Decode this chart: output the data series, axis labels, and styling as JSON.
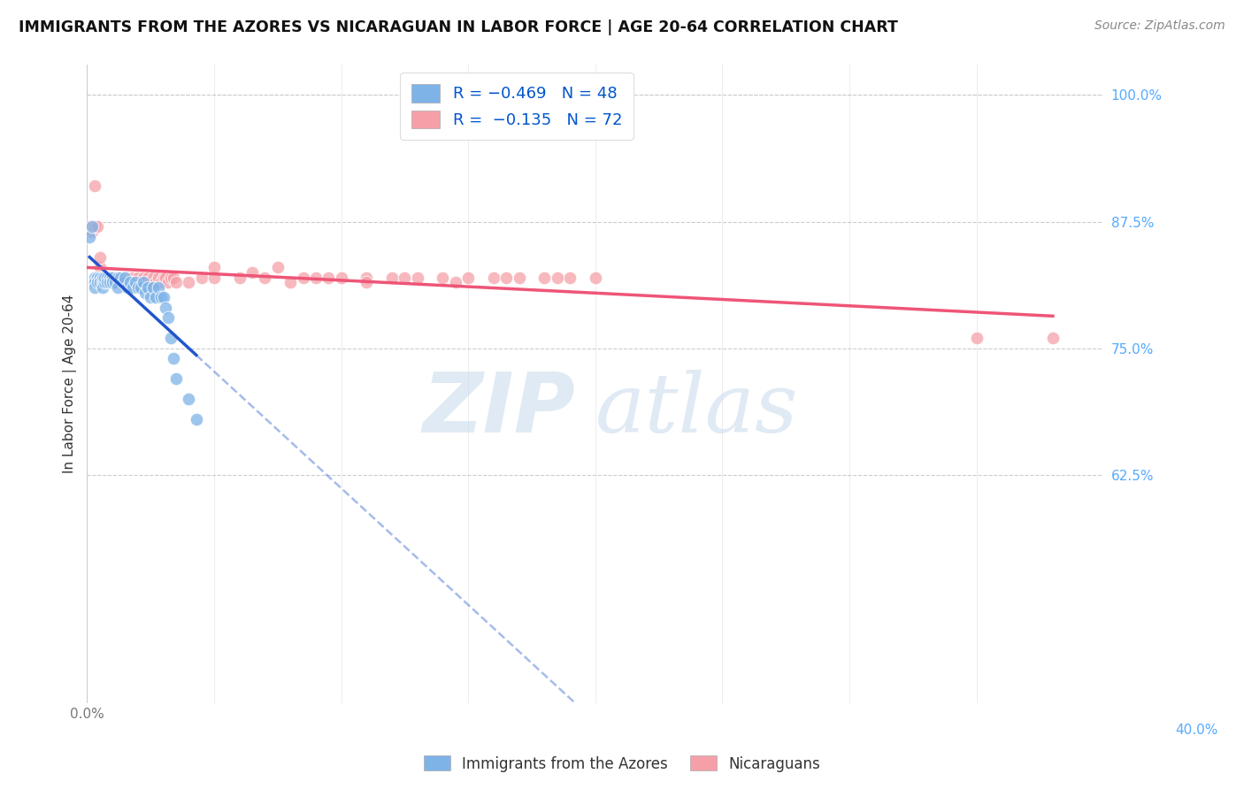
{
  "title": "IMMIGRANTS FROM THE AZORES VS NICARAGUAN IN LABOR FORCE | AGE 20-64 CORRELATION CHART",
  "source": "Source: ZipAtlas.com",
  "ylabel": "In Labor Force | Age 20-64",
  "xlim": [
    0.0,
    0.4
  ],
  "ylim": [
    0.4,
    1.03
  ],
  "xticks": [
    0.0,
    0.05,
    0.1,
    0.15,
    0.2,
    0.25,
    0.3,
    0.35,
    0.4
  ],
  "xticklabels": [
    "0.0%",
    "",
    "",
    "",
    "",
    "",
    "",
    "",
    "40.0%"
  ],
  "yticks_right": [
    1.0,
    0.875,
    0.75,
    0.625
  ],
  "ytick_labels_right": [
    "100.0%",
    "87.5%",
    "75.0%",
    "62.5%"
  ],
  "azores_R": -0.469,
  "azores_N": 48,
  "nicaraguan_R": -0.135,
  "nicaraguan_N": 72,
  "azores_color": "#7EB3E8",
  "nicaraguan_color": "#F5A0A8",
  "azores_line_color": "#2255CC",
  "nicaraguan_line_color": "#EE5577",
  "azores_x": [
    0.001,
    0.002,
    0.003,
    0.003,
    0.003,
    0.004,
    0.004,
    0.005,
    0.005,
    0.006,
    0.006,
    0.006,
    0.007,
    0.007,
    0.008,
    0.008,
    0.009,
    0.009,
    0.01,
    0.01,
    0.011,
    0.012,
    0.012,
    0.013,
    0.014,
    0.015,
    0.016,
    0.017,
    0.018,
    0.019,
    0.02,
    0.021,
    0.022,
    0.023,
    0.024,
    0.025,
    0.026,
    0.027,
    0.028,
    0.029,
    0.03,
    0.031,
    0.032,
    0.033,
    0.034,
    0.035,
    0.04,
    0.043
  ],
  "azores_y": [
    0.86,
    0.87,
    0.82,
    0.815,
    0.81,
    0.82,
    0.815,
    0.82,
    0.815,
    0.815,
    0.81,
    0.82,
    0.815,
    0.82,
    0.82,
    0.815,
    0.82,
    0.815,
    0.82,
    0.815,
    0.815,
    0.82,
    0.81,
    0.82,
    0.815,
    0.82,
    0.81,
    0.815,
    0.81,
    0.815,
    0.81,
    0.81,
    0.815,
    0.805,
    0.81,
    0.8,
    0.81,
    0.8,
    0.81,
    0.8,
    0.8,
    0.79,
    0.78,
    0.76,
    0.74,
    0.72,
    0.7,
    0.68
  ],
  "nicaraguan_x": [
    0.001,
    0.002,
    0.003,
    0.003,
    0.004,
    0.005,
    0.005,
    0.006,
    0.006,
    0.007,
    0.007,
    0.008,
    0.008,
    0.009,
    0.01,
    0.01,
    0.011,
    0.012,
    0.013,
    0.013,
    0.014,
    0.015,
    0.016,
    0.017,
    0.018,
    0.019,
    0.02,
    0.021,
    0.022,
    0.023,
    0.024,
    0.025,
    0.026,
    0.027,
    0.028,
    0.029,
    0.03,
    0.031,
    0.032,
    0.033,
    0.034,
    0.035,
    0.04,
    0.045,
    0.05,
    0.06,
    0.07,
    0.08,
    0.09,
    0.1,
    0.11,
    0.12,
    0.13,
    0.14,
    0.15,
    0.16,
    0.17,
    0.18,
    0.19,
    0.2,
    0.05,
    0.065,
    0.075,
    0.085,
    0.095,
    0.11,
    0.125,
    0.145,
    0.165,
    0.185,
    0.35,
    0.38
  ],
  "nicaraguan_y": [
    0.87,
    0.865,
    0.91,
    0.87,
    0.87,
    0.83,
    0.84,
    0.82,
    0.815,
    0.82,
    0.815,
    0.82,
    0.815,
    0.82,
    0.82,
    0.815,
    0.82,
    0.815,
    0.82,
    0.815,
    0.82,
    0.815,
    0.82,
    0.815,
    0.82,
    0.815,
    0.82,
    0.815,
    0.82,
    0.815,
    0.82,
    0.815,
    0.82,
    0.815,
    0.82,
    0.815,
    0.82,
    0.82,
    0.815,
    0.82,
    0.82,
    0.815,
    0.815,
    0.82,
    0.82,
    0.82,
    0.82,
    0.815,
    0.82,
    0.82,
    0.82,
    0.82,
    0.82,
    0.82,
    0.82,
    0.82,
    0.82,
    0.82,
    0.82,
    0.82,
    0.83,
    0.825,
    0.83,
    0.82,
    0.82,
    0.815,
    0.82,
    0.815,
    0.82,
    0.82,
    0.76,
    0.76
  ],
  "watermark_text": "ZIP",
  "watermark_text2": "atlas",
  "background_color": "#FFFFFF",
  "grid_color": "#CCCCCC"
}
